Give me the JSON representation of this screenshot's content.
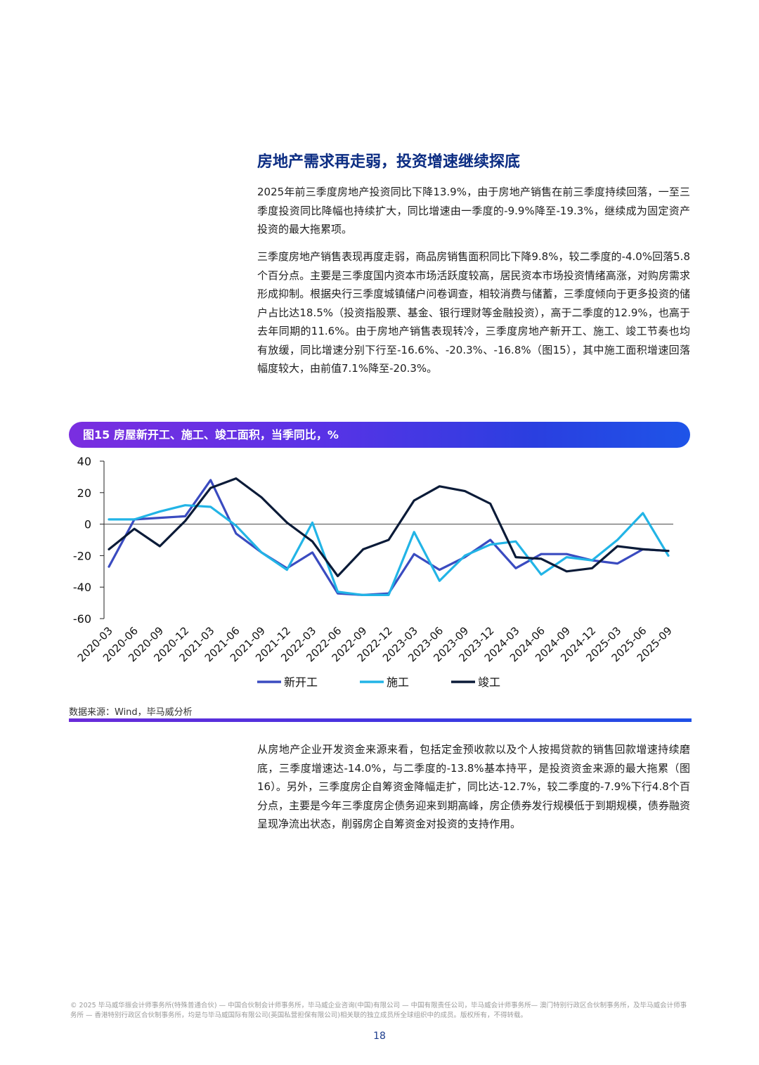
{
  "section": {
    "title": "房地产需求再走弱，投资增速继续探底",
    "paragraphs": [
      "2025年前三季度房地产投资同比下降13.9%，由于房地产销售在前三季度持续回落，一至三季度投资同比降幅也持续扩大，同比增速由一季度的-9.9%降至-19.3%，继续成为固定资产投资的最大拖累项。",
      "三季度房地产销售表现再度走弱，商品房销售面积同比下降9.8%，较二季度的-4.0%回落5.8个百分点。主要是三季度国内资本市场活跃度较高，居民资本市场投资情绪高涨，对购房需求形成抑制。根据央行三季度城镇储户问卷调查，相较消费与储蓄，三季度倾向于更多投资的储户占比达18.5%（投资指股票、基金、银行理财等金融投资），高于二季度的12.9%，也高于去年同期的11.6%。由于房地产销售表现转冷，三季度房地产新开工、施工、竣工节奏也均有放缓，同比增速分别下行至-16.6%、-20.3%、-16.8%（图15），其中施工面积增速回落幅度较大，由前值7.1%降至-20.3%。",
      "从房地产企业开发资金来源来看，包括定金预收款以及个人按揭贷款的销售回款增速持续磨底，三季度增速达-14.0%，与二季度的-13.8%基本持平，是投资资金来源的最大拖累（图16）。另外，三季度房企自筹资金降幅走扩，同比达-12.7%，较二季度的-7.9%下行4.8个百分点，主要是今年三季度房企债务迎来到期高峰，房企债券发行规模低于到期规模，债券融资呈现净流出状态，削弱房企自筹资金对投资的支持作用。"
    ]
  },
  "figure": {
    "title": "图15 房屋新开工、施工、竣工面积，当季同比，%",
    "source": "数据来源：Wind，毕马威分析"
  },
  "chart_data": {
    "type": "line",
    "x": [
      "2020-03",
      "2020-06",
      "2020-09",
      "2020-12",
      "2021-03",
      "2021-06",
      "2021-09",
      "2021-12",
      "2022-03",
      "2022-06",
      "2022-09",
      "2022-12",
      "2023-03",
      "2023-06",
      "2023-09",
      "2023-12",
      "2024-03",
      "2024-06",
      "2024-09",
      "2024-12",
      "2025-03",
      "2025-06",
      "2025-09"
    ],
    "ylim": [
      -60,
      40
    ],
    "yticks": [
      "40",
      "20",
      "0",
      "-20",
      "-40",
      "-60"
    ],
    "series": [
      {
        "name": "新开工",
        "color": "#3a4bc0",
        "values": [
          -27,
          3,
          4,
          5,
          28,
          -6,
          -18,
          -28,
          -18,
          -44,
          -45,
          -44,
          -19,
          -29,
          -21,
          -10,
          -28,
          -19,
          -19,
          -23,
          -25,
          -16,
          -17
        ]
      },
      {
        "name": "施工",
        "color": "#22b4e6",
        "values": [
          3,
          3,
          8,
          12,
          11,
          -1,
          -18,
          -29,
          1,
          -43,
          -45,
          -45,
          -5,
          -36,
          -20,
          -13,
          -11,
          -32,
          -21,
          -23,
          -10,
          7,
          -20
        ]
      },
      {
        "name": "竣工",
        "color": "#0b1b38",
        "values": [
          -16,
          -3,
          -14,
          2,
          23,
          29,
          17,
          1,
          -11,
          -33,
          -16,
          -10,
          15,
          24,
          21,
          13,
          -21,
          -22,
          -30,
          -28,
          -14,
          -16,
          -17
        ]
      }
    ]
  },
  "footer": {
    "legal": "© 2025 毕马威华振会计师事务所(特殊普通合伙) — 中国合伙制会计师事务所，毕马威企业咨询(中国)有限公司 — 中国有限责任公司，毕马威会计师事务所— 澳门特别行政区合伙制事务所，及毕马威会计师事务所 — 香港特别行政区合伙制事务所，均是与毕马威国际有限公司(英国私营担保有限公司)相关联的独立成员所全球组织中的成员。版权所有，不得转载。",
    "page_number": "18"
  }
}
